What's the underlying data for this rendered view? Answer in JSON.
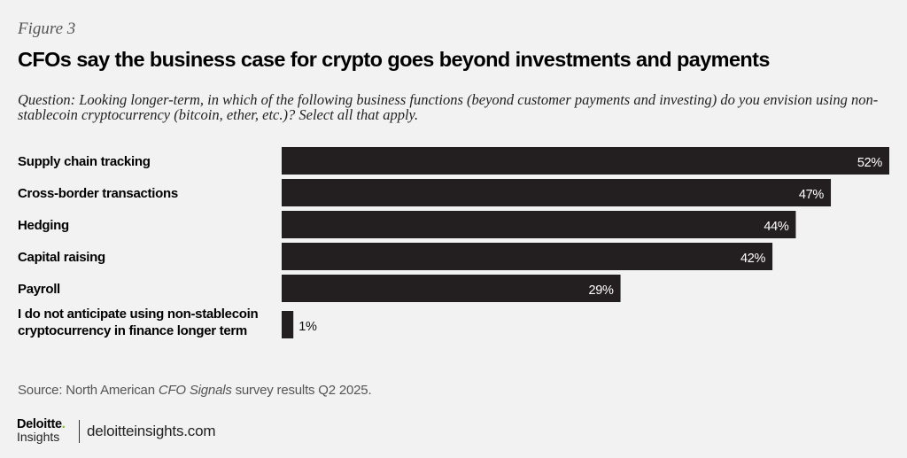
{
  "figure_label": "Figure 3",
  "chart_data": {
    "type": "bar",
    "orientation": "horizontal",
    "title": "CFOs say the business case for crypto goes beyond investments and payments",
    "subtitle": "Question: Looking longer-term, in which of the following business functions (beyond customer payments and investing) do you envision using non-stablecoin cryptocurrency (bitcoin, ether, etc.)? Select all that apply.",
    "categories": [
      "Supply chain tracking",
      "Cross-border transactions",
      "Hedging",
      "Capital raising",
      "Payroll",
      "I do not anticipate using non-stablecoin cryptocurrency in finance longer term"
    ],
    "values": [
      52,
      47,
      44,
      42,
      29,
      1
    ],
    "value_labels": [
      "52%",
      "47%",
      "44%",
      "42%",
      "29%",
      "1%"
    ],
    "xlim": [
      0,
      52
    ],
    "unit": "%",
    "grid": false,
    "bar_color": "#231f20",
    "label_color_inside": "#ffffff"
  },
  "source": {
    "prefix": "Source: North American ",
    "italic": "CFO Signals",
    "suffix": " survey results Q2 2025."
  },
  "logo": {
    "brand": "Deloitte",
    "dot": ".",
    "sub": "Insights",
    "dot_color": "#86bc25"
  },
  "url": "deloitteinsights.com"
}
